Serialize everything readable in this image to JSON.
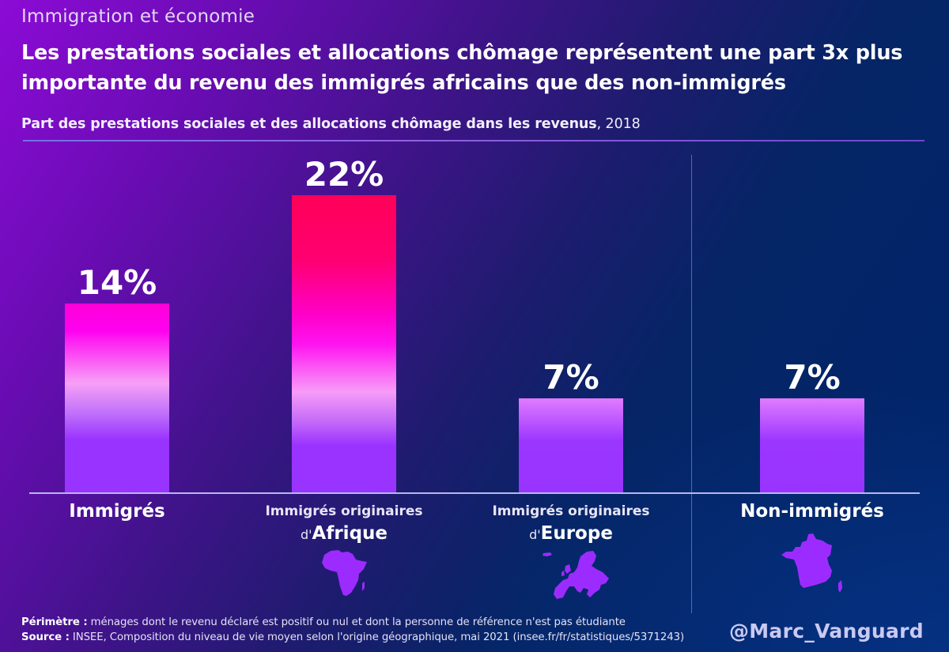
{
  "header": {
    "kicker": "Immigration et économie",
    "title": "Les prestations sociales et allocations chômage représentent une part 3x plus importante du revenu des immigrés africains que des non-immigrés",
    "subtitle_bold": "Part des prestations sociales et des allocations chômage dans les revenus",
    "subtitle_rest": ", 2018"
  },
  "colors": {
    "bar_top_pink": "#ff0066",
    "bar_magenta": "#ff00e6",
    "bar_light_pink": "#f7a0f7",
    "bar_violet": "#9933ff",
    "bar_light_top": "#e07cff",
    "map_fill": "#9c2bff",
    "background_purple": "#8c0bd6",
    "background_navy": "#00246a",
    "handle": "#c9c9f2"
  },
  "chart_data": {
    "type": "bar",
    "title": "Part des prestations sociales et des allocations chômage dans les revenus, 2018",
    "xlabel": "",
    "ylabel": "",
    "unit": "%",
    "ylim": [
      0,
      22
    ],
    "grid": false,
    "legend": "none",
    "categories": [
      "Immigrés",
      "Immigrés originaires d'Afrique",
      "Immigrés originaires d'Europe",
      "Non-immigrés"
    ],
    "values": [
      14,
      22,
      7,
      7
    ],
    "data_labels": [
      "14%",
      "22%",
      "7%",
      "7%"
    ]
  },
  "categories": [
    {
      "big": "Immigrés"
    },
    {
      "small": "Immigrés originaires",
      "pre": "d'",
      "post": "Afrique",
      "icon": "africa-map-icon"
    },
    {
      "small": "Immigrés originaires",
      "pre": "d'",
      "post": "Europe",
      "icon": "europe-map-icon"
    },
    {
      "big": "Non-immigrés",
      "icon": "france-map-icon"
    }
  ],
  "footer": {
    "perimetre_label": "Périmètre :",
    "perimetre_text": " ménages dont le revenu déclaré est positif ou nul et dont la personne de référence n'est pas étudiante",
    "source_label": "Source :",
    "source_text": " INSEE, Composition du niveau de vie moyen selon l'origine géographique, mai 2021 (insee.fr/fr/statistiques/5371243)",
    "handle": "@Marc_Vanguard"
  }
}
